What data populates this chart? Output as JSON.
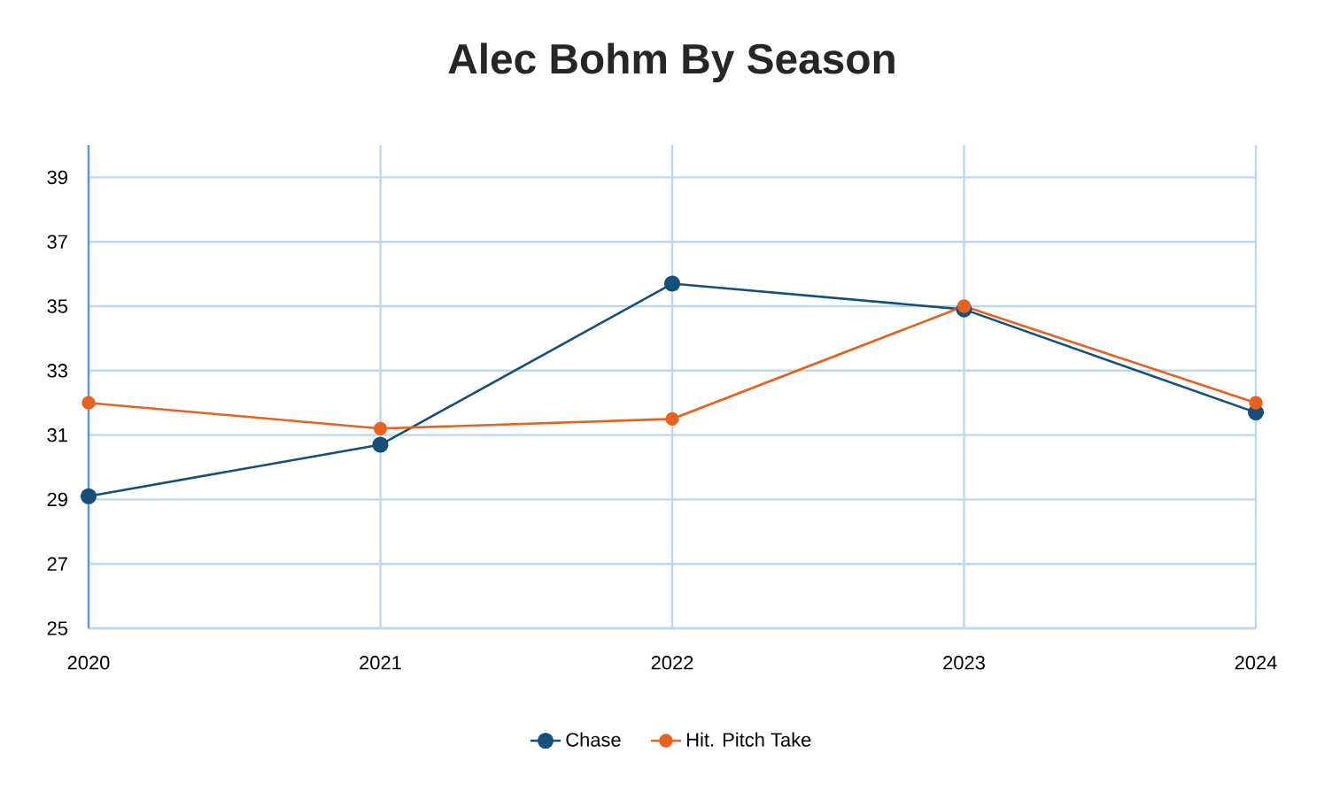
{
  "chart_data": {
    "type": "line",
    "title": "Alec Bohm By Season",
    "categories": [
      "2020",
      "2021",
      "2022",
      "2023",
      "2024"
    ],
    "series": [
      {
        "name": "Chase",
        "color": "#16507a",
        "values": [
          29.1,
          30.7,
          35.7,
          34.9,
          31.7
        ]
      },
      {
        "name": "Hit. Pitch Take",
        "color": "#e8621f",
        "values": [
          32.0,
          31.2,
          31.5,
          35.0,
          32.0
        ]
      }
    ],
    "ylim": [
      25,
      40
    ],
    "yticks": [
      25,
      27,
      29,
      31,
      33,
      35,
      37,
      39
    ],
    "grid": true,
    "legend": "bottom",
    "marker": "circle",
    "line_style": "solid"
  }
}
